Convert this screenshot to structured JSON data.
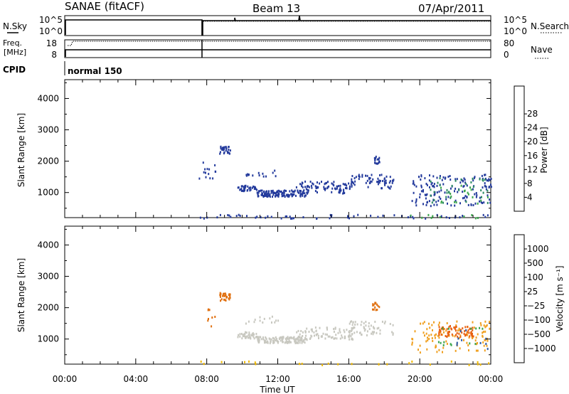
{
  "header": {
    "station": "SANAE (fitACF)",
    "beam": "Beam 13",
    "date": "07/Apr/2011"
  },
  "summary_panels": {
    "nsky_label": "N.Sky",
    "nsky_ticks": [
      "10^5",
      "10^0"
    ],
    "nsearch_label": "N.Search",
    "nsearch_ticks": [
      "10^5",
      "10^0"
    ],
    "freq_label_top": "Freq.",
    "freq_label_bottom": "[MHz]",
    "freq_ticks": [
      "18",
      "8"
    ],
    "nave_label": "Nave",
    "nave_ticks": [
      "80",
      "0"
    ],
    "cpid_label": "CPID",
    "cpid_value": "normal 150"
  },
  "colors": {
    "frame": "#000000",
    "blue": "#2236a6",
    "dark_blue": "#1a2a8f",
    "teal": "#2e8b57",
    "green": "#44bb33",
    "grey": "#c8c8c0",
    "orange": "#f08a10",
    "dark_orange": "#e06a08",
    "yellow": "#f5b800",
    "red": "#e81010"
  },
  "chart_data": [
    {
      "type": "heatmap",
      "name": "power",
      "xlabel": "",
      "ylabel": "Slant Range [km]",
      "x_ticks": [
        "00:00",
        "04:00",
        "08:00",
        "12:00",
        "16:00",
        "20:00",
        "00:00"
      ],
      "xlim": [
        0,
        24
      ],
      "ylim": [
        200,
        4600
      ],
      "y_ticks": [
        1000,
        2000,
        3000,
        4000
      ],
      "colorbar": {
        "label": "Power [dB]",
        "ticks": [
          "4",
          "8",
          "12",
          "16",
          "20",
          "24",
          "28"
        ],
        "colors": [
          "#0022ee",
          "#233a9c",
          "#2a8a60",
          "#3aa54a",
          "#7cc43a",
          "#f2b800",
          "#f07a10",
          "#e86010",
          "#e81010"
        ]
      },
      "clusters": [
        {
          "t": [
            7.5,
            8.5
          ],
          "r": [
            1400,
            2000
          ],
          "c": "#233a9c",
          "n": 14
        },
        {
          "t": [
            8.7,
            9.3
          ],
          "r": [
            2250,
            2500
          ],
          "c": "#233a9c",
          "n": 30
        },
        {
          "t": [
            9.7,
            10.8
          ],
          "r": [
            1050,
            1250
          ],
          "c": "#233a9c",
          "n": 40
        },
        {
          "t": [
            10.8,
            13.6
          ],
          "r": [
            900,
            1100
          ],
          "c": "#233a9c",
          "n": 130
        },
        {
          "t": [
            13.0,
            16.2
          ],
          "r": [
            1000,
            1400
          ],
          "c": "#233a9c",
          "n": 90
        },
        {
          "t": [
            16.0,
            18.5
          ],
          "r": [
            1150,
            1600
          ],
          "c": "#233a9c",
          "n": 60
        },
        {
          "t": [
            17.3,
            17.7
          ],
          "r": [
            1950,
            2200
          ],
          "c": "#233a9c",
          "n": 15
        },
        {
          "t": [
            10.0,
            12.0
          ],
          "r": [
            1500,
            1750
          ],
          "c": "#233a9c",
          "n": 14
        },
        {
          "t": [
            19.5,
            24.0
          ],
          "r": [
            600,
            1600
          ],
          "c": "#233a9c",
          "n": 150
        },
        {
          "t": [
            20.5,
            23.8
          ],
          "r": [
            700,
            1500
          ],
          "c": "#2a8a60",
          "n": 35
        },
        {
          "t": [
            21.0,
            24.0
          ],
          "r": [
            650,
            1300
          ],
          "c": "#3aa54a",
          "n": 18
        },
        {
          "t": [
            7.5,
            24.0
          ],
          "r": [
            200,
            320
          ],
          "c": "#233a9c",
          "n": 60
        },
        {
          "t": [
            18.5,
            24.0
          ],
          "r": [
            200,
            320
          ],
          "c": "#3aa54a",
          "n": 10
        }
      ]
    },
    {
      "type": "heatmap",
      "name": "velocity",
      "xlabel": "Time UT",
      "ylabel": "Slant Range [km]",
      "x_ticks": [
        "00:00",
        "04:00",
        "08:00",
        "12:00",
        "16:00",
        "20:00",
        "00:00"
      ],
      "xlim": [
        0,
        24
      ],
      "ylim": [
        200,
        4600
      ],
      "y_ticks": [
        1000,
        2000,
        3000,
        4000
      ],
      "colorbar": {
        "label": "Velocity [m s⁻¹]",
        "ticks": [
          "1000",
          "500",
          "100",
          "25",
          "−25",
          "−100",
          "−500",
          "−1000"
        ],
        "colors": [
          "#2a40c0",
          "#2a58a8",
          "#2e8a50",
          "#5cbc3c",
          "#c8c8c0",
          "#f0b800",
          "#f08a10",
          "#f06010",
          "#e81010"
        ]
      },
      "clusters": [
        {
          "t": [
            7.5,
            8.5
          ],
          "r": [
            1400,
            2000
          ],
          "c": "#e07010",
          "n": 8
        },
        {
          "t": [
            8.7,
            9.3
          ],
          "r": [
            2250,
            2500
          ],
          "c": "#e07010",
          "n": 30
        },
        {
          "t": [
            9.7,
            10.8
          ],
          "r": [
            1050,
            1250
          ],
          "c": "#c8c8c0",
          "n": 40
        },
        {
          "t": [
            10.8,
            13.6
          ],
          "r": [
            900,
            1100
          ],
          "c": "#c8c8c0",
          "n": 130
        },
        {
          "t": [
            13.0,
            16.2
          ],
          "r": [
            1000,
            1400
          ],
          "c": "#c8c8c0",
          "n": 90
        },
        {
          "t": [
            16.0,
            18.5
          ],
          "r": [
            1150,
            1600
          ],
          "c": "#c8c8c0",
          "n": 60
        },
        {
          "t": [
            17.3,
            17.7
          ],
          "r": [
            1950,
            2200
          ],
          "c": "#e07010",
          "n": 15
        },
        {
          "t": [
            10.0,
            12.0
          ],
          "r": [
            1500,
            1750
          ],
          "c": "#c8c8c0",
          "n": 14
        },
        {
          "t": [
            19.5,
            24.0
          ],
          "r": [
            600,
            1600
          ],
          "c": "#f0a020",
          "n": 110
        },
        {
          "t": [
            21.0,
            23.0
          ],
          "r": [
            1100,
            1450
          ],
          "c": "#e86010",
          "n": 60
        },
        {
          "t": [
            21.0,
            24.0
          ],
          "r": [
            800,
            1400
          ],
          "c": "#3aa54a",
          "n": 14
        },
        {
          "t": [
            22.0,
            24.0
          ],
          "r": [
            700,
            1400
          ],
          "c": "#2a58a8",
          "n": 10
        },
        {
          "t": [
            7.5,
            24.0
          ],
          "r": [
            200,
            320
          ],
          "c": "#f0b800",
          "n": 25
        }
      ]
    }
  ]
}
